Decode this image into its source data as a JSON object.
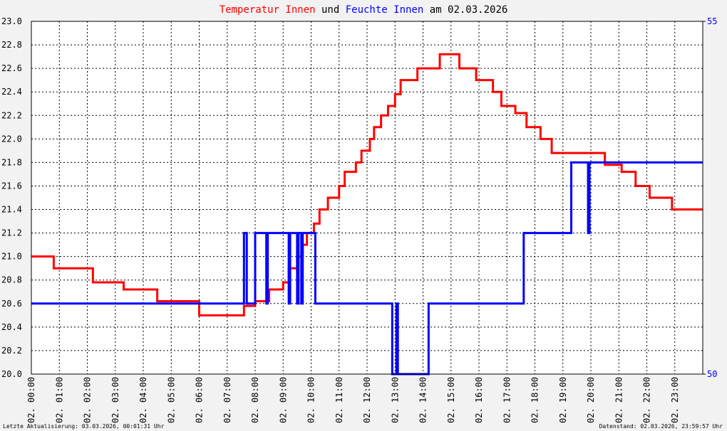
{
  "chart_data": {
    "type": "line",
    "title": {
      "parts": [
        {
          "text": "Temperatur Innen",
          "color": "#ff0000"
        },
        {
          "text": "und",
          "color": "#000000"
        },
        {
          "text": "Feuchte Innen",
          "color": "#0000ff"
        },
        {
          "text": "am 02.03.2026",
          "color": "#000000"
        }
      ]
    },
    "footer_left": "Letzte Aktualisierung: 03.03.2026, 00:01:31 Uhr",
    "footer_right": "Datenstand: 02.03.2026, 23:59:57 Uhr",
    "xlim": [
      0,
      24
    ],
    "xticks": [
      {
        "value": 0,
        "label": "02. 00:00"
      },
      {
        "value": 1,
        "label": "02. 01:00"
      },
      {
        "value": 2,
        "label": "02. 02:00"
      },
      {
        "value": 3,
        "label": "02. 03:00"
      },
      {
        "value": 4,
        "label": "02. 04:00"
      },
      {
        "value": 5,
        "label": "02. 05:00"
      },
      {
        "value": 6,
        "label": "02. 06:00"
      },
      {
        "value": 7,
        "label": "02. 07:00"
      },
      {
        "value": 8,
        "label": "02. 08:00"
      },
      {
        "value": 9,
        "label": "02. 09:00"
      },
      {
        "value": 10,
        "label": "02. 10:00"
      },
      {
        "value": 11,
        "label": "02. 11:00"
      },
      {
        "value": 12,
        "label": "02. 12:00"
      },
      {
        "value": 13,
        "label": "02. 13:00"
      },
      {
        "value": 14,
        "label": "02. 14:00"
      },
      {
        "value": 15,
        "label": "02. 15:00"
      },
      {
        "value": 16,
        "label": "02. 16:00"
      },
      {
        "value": 17,
        "label": "02. 17:00"
      },
      {
        "value": 18,
        "label": "02. 18:00"
      },
      {
        "value": 19,
        "label": "02. 19:00"
      },
      {
        "value": 20,
        "label": "02. 20:00"
      },
      {
        "value": 21,
        "label": "02. 21:00"
      },
      {
        "value": 22,
        "label": "02. 22:00"
      },
      {
        "value": 23,
        "label": "02. 23:00"
      }
    ],
    "ylim": [
      20,
      23
    ],
    "yticks": [
      {
        "value": 20,
        "label": "20.0"
      },
      20.2,
      20.4,
      20.6,
      20.8,
      {
        "value": 21,
        "label": "21.0"
      },
      21.2,
      21.4,
      21.6,
      21.8,
      {
        "value": 22,
        "label": "22.0"
      },
      22.2,
      22.4,
      22.6,
      22.8,
      {
        "value": 23,
        "label": "23.0"
      }
    ],
    "y2lim": [
      50,
      55
    ],
    "y2ticks": [
      50,
      55
    ],
    "y2color": "#0000ff",
    "grid": true,
    "series": [
      {
        "name": "Temperatur Innen",
        "color": "#ff0000",
        "x": [
          0,
          0.8,
          0.8,
          2.2,
          2.2,
          3.3,
          3.3,
          4.5,
          4.5,
          6.0,
          6.0,
          7.6,
          7.6,
          8.0,
          8.0,
          8.5,
          8.5,
          9.0,
          9.0,
          9.2,
          9.2,
          9.5,
          9.5,
          9.7,
          9.7,
          9.85,
          9.85,
          10.1,
          10.1,
          10.3,
          10.3,
          10.6,
          10.6,
          11.0,
          11.0,
          11.2,
          11.2,
          11.6,
          11.6,
          11.8,
          11.8,
          12.1,
          12.1,
          12.25,
          12.25,
          12.5,
          12.5,
          12.75,
          12.75,
          13.0,
          13.0,
          13.2,
          13.2,
          13.8,
          13.8,
          14.6,
          14.6,
          15.3,
          15.3,
          15.9,
          15.9,
          16.5,
          16.5,
          16.8,
          16.8,
          17.3,
          17.3,
          17.7,
          17.7,
          18.2,
          18.2,
          18.6,
          18.6,
          20.5,
          20.5,
          21.1,
          21.1,
          21.6,
          21.6,
          22.1,
          22.1,
          22.9,
          22.9,
          24
        ],
        "values": [
          21.0,
          21.0,
          20.9,
          20.9,
          20.78,
          20.78,
          20.72,
          20.72,
          20.62,
          20.62,
          20.5,
          20.5,
          20.58,
          20.58,
          20.62,
          20.62,
          20.72,
          20.72,
          20.78,
          20.78,
          20.9,
          20.9,
          21.0,
          21.0,
          21.1,
          21.1,
          21.2,
          21.2,
          21.28,
          21.28,
          21.4,
          21.4,
          21.5,
          21.5,
          21.6,
          21.6,
          21.72,
          21.72,
          21.8,
          21.8,
          21.9,
          21.9,
          22.0,
          22.0,
          22.1,
          22.1,
          22.2,
          22.2,
          22.28,
          22.28,
          22.38,
          22.38,
          22.5,
          22.5,
          22.6,
          22.6,
          22.72,
          22.72,
          22.6,
          22.6,
          22.5,
          22.5,
          22.4,
          22.4,
          22.28,
          22.28,
          22.22,
          22.22,
          22.1,
          22.1,
          22.0,
          22.0,
          21.88,
          21.88,
          21.78,
          21.78,
          21.72,
          21.72,
          21.6,
          21.6,
          21.5,
          21.5,
          21.4,
          21.4
        ]
      },
      {
        "name": "Feuchte Innen",
        "color": "#0000ff",
        "axis": "y2",
        "x": [
          0,
          7.6,
          7.6,
          7.7,
          7.7,
          8.0,
          8.0,
          8.4,
          8.4,
          8.45,
          8.45,
          9.2,
          9.2,
          9.25,
          9.25,
          9.5,
          9.5,
          9.55,
          9.55,
          9.65,
          9.65,
          9.7,
          9.7,
          10.15,
          10.15,
          12.9,
          12.9,
          13.05,
          13.05,
          13.1,
          13.1,
          14.2,
          14.2,
          17.6,
          17.6,
          19.3,
          19.3,
          19.9,
          19.9,
          19.95,
          19.95,
          24
        ],
        "values": [
          51,
          51,
          52,
          52,
          51,
          51,
          52,
          52,
          51,
          51,
          52,
          52,
          51,
          51,
          52,
          52,
          51,
          51,
          52,
          52,
          51,
          51,
          52,
          52,
          51,
          51,
          50,
          50,
          51,
          51,
          50,
          50,
          51,
          51,
          52,
          52,
          53,
          53,
          52,
          52,
          53,
          53
        ]
      }
    ]
  }
}
